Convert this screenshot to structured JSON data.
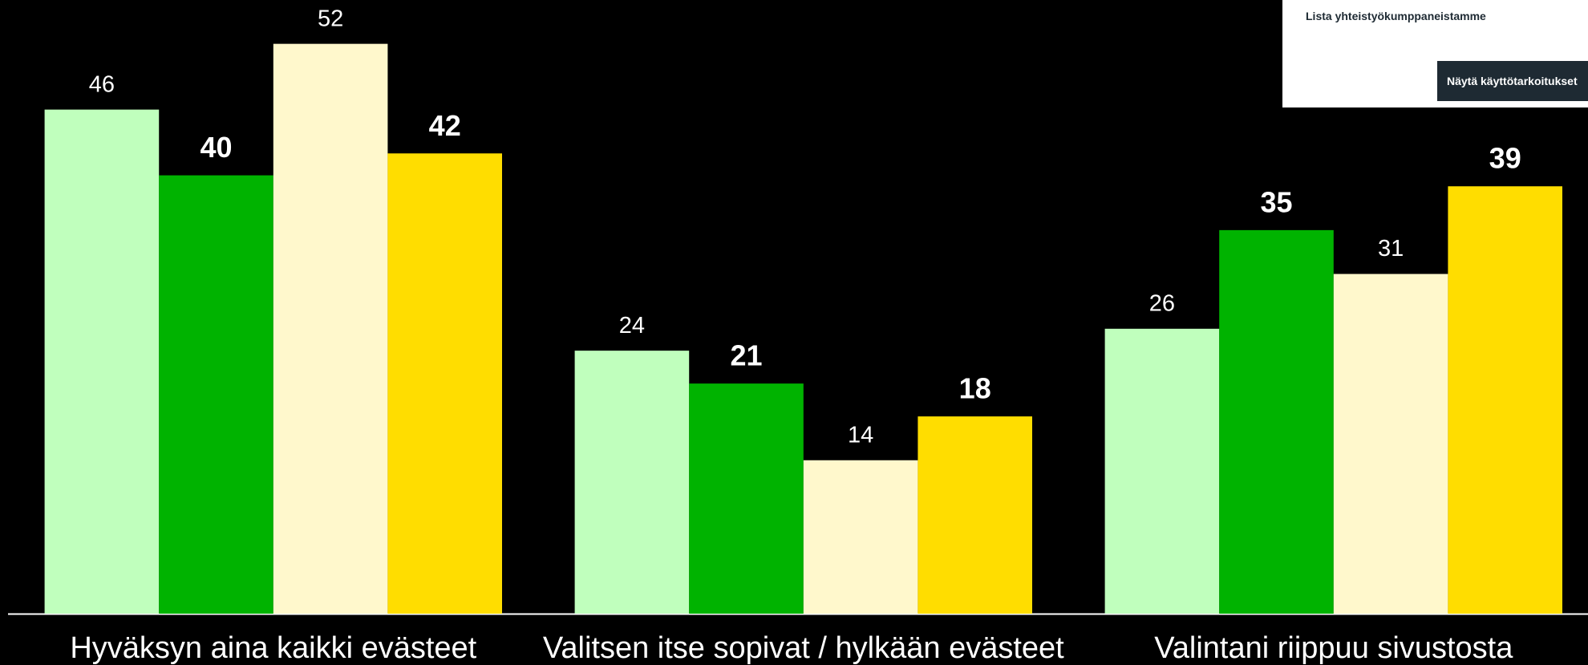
{
  "chart_data": {
    "type": "bar",
    "categories": [
      "Hyväksyn aina kaikki evästeet",
      "Valitsen itse sopivat / hylkään evästeet",
      "Valintani riippuu sivustosta"
    ],
    "series": [
      {
        "color": "#c0ffbd",
        "bold": false,
        "values": [
          46,
          24,
          26
        ]
      },
      {
        "color": "#00b300",
        "bold": true,
        "values": [
          40,
          21,
          35
        ]
      },
      {
        "color": "#fff8cc",
        "bold": false,
        "values": [
          52,
          14,
          31
        ]
      },
      {
        "color": "#ffdd00",
        "bold": true,
        "values": [
          42,
          18,
          39
        ]
      }
    ],
    "ylim": [
      0,
      56
    ],
    "grid": false
  },
  "overlay": {
    "link": "Lista yhteistyökumppaneistamme",
    "button": "Näytä käyttötarkoitukset"
  }
}
